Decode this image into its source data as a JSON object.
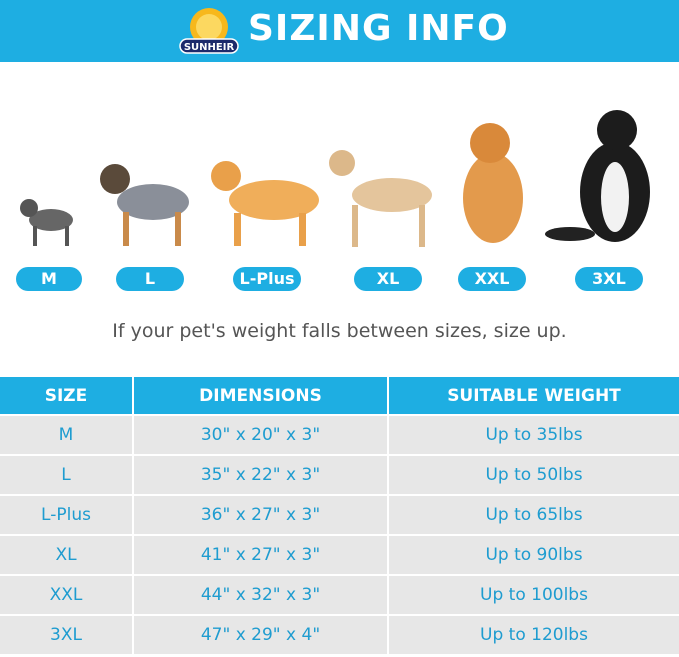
{
  "header": {
    "title": "SIZING INFO",
    "logo_text": "SUNHEIR"
  },
  "sizes": [
    "M",
    "L",
    "L-Plus",
    "XL",
    "XXL",
    "3XL"
  ],
  "note": "If your pet's weight falls between sizes, size up.",
  "table": {
    "headers": [
      "SIZE",
      "DIMENSIONS",
      "SUITABLE WEIGHT"
    ],
    "rows": [
      [
        "M",
        "30\" x 20\" x 3\"",
        "Up to 35lbs"
      ],
      [
        "L",
        "35\" x 22\" x 3\"",
        "Up to 50lbs"
      ],
      [
        "L-Plus",
        "36\" x 27\" x 3\"",
        "Up to 65lbs"
      ],
      [
        "XL",
        "41\" x 27\" x 3\"",
        "Up to 90lbs"
      ],
      [
        "XXL",
        "44\" x 32\" x 3\"",
        "Up to 100lbs"
      ],
      [
        "3XL",
        "47\" x 29\" x 4\"",
        "Up to 120lbs"
      ]
    ]
  },
  "colors": {
    "accent": "#1eaee2",
    "text": "#1e9cd0"
  }
}
